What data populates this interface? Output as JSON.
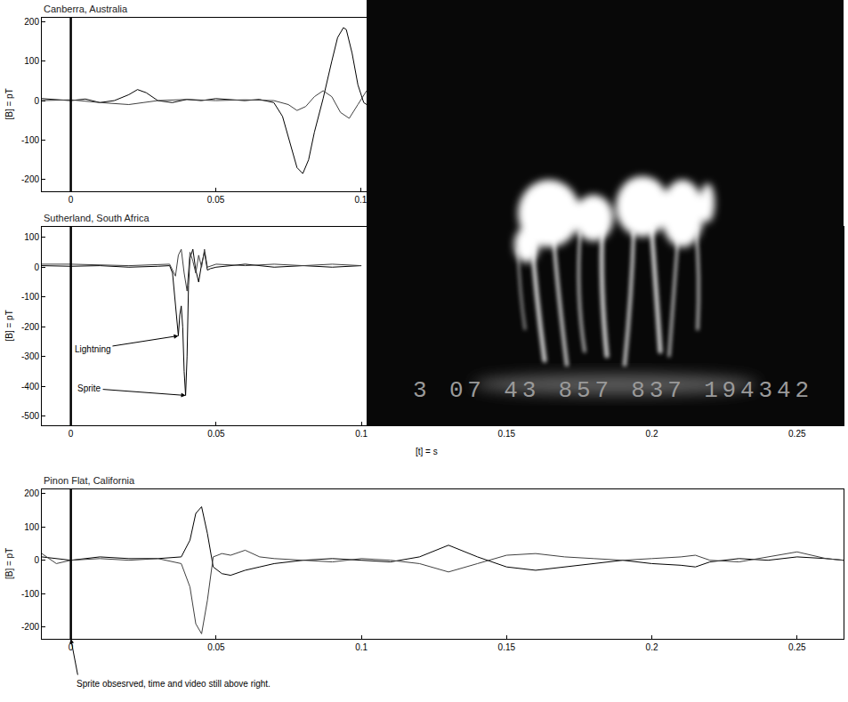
{
  "chart_data": [
    {
      "type": "line",
      "title": "Canberra, Australia",
      "ylabel": "[B] = pT",
      "xlim": [
        -0.01,
        0.102
      ],
      "ylim": [
        -230,
        210
      ],
      "xticks": [
        0,
        0.05,
        0.1
      ],
      "yticks": [
        -200,
        -100,
        0,
        100,
        200
      ],
      "vline": 0,
      "series": [
        {
          "color": "#000000",
          "x": [
            -0.01,
            -0.005,
            0,
            0.005,
            0.01,
            0.015,
            0.02,
            0.023,
            0.026,
            0.03,
            0.035,
            0.04,
            0.045,
            0.05,
            0.055,
            0.06,
            0.065,
            0.07,
            0.073,
            0.076,
            0.078,
            0.08,
            0.082,
            0.084,
            0.087,
            0.09,
            0.092,
            0.094,
            0.095,
            0.097,
            0.099,
            0.101,
            0.102
          ],
          "values": [
            5,
            3,
            0,
            4,
            -5,
            0,
            15,
            28,
            20,
            0,
            -5,
            3,
            0,
            5,
            2,
            0,
            3,
            -5,
            -40,
            -120,
            -170,
            -185,
            -150,
            -80,
            5,
            100,
            160,
            185,
            180,
            120,
            40,
            -5,
            -10
          ]
        },
        {
          "color": "#404040",
          "x": [
            -0.01,
            0,
            0.01,
            0.02,
            0.025,
            0.03,
            0.04,
            0.05,
            0.06,
            0.07,
            0.075,
            0.078,
            0.081,
            0.084,
            0.087,
            0.09,
            0.093,
            0.096,
            0.099,
            0.102
          ],
          "values": [
            0,
            2,
            -5,
            -10,
            -5,
            0,
            3,
            0,
            2,
            0,
            -10,
            -25,
            -15,
            10,
            25,
            10,
            -30,
            -45,
            -10,
            25
          ]
        }
      ]
    },
    {
      "type": "line",
      "title": "Sutherland, South Africa",
      "ylabel": "[B] = pT",
      "xlabel": "[t] = s",
      "xlim": [
        -0.01,
        0.266
      ],
      "ylim": [
        -530,
        135
      ],
      "xticks": [
        0,
        0.05,
        0.1,
        0.15,
        0.2,
        0.25
      ],
      "yticks": [
        -500,
        -400,
        -300,
        -200,
        -100,
        0,
        100
      ],
      "vline": 0,
      "annotations": [
        {
          "text": "Lightning",
          "x": 0.037,
          "y": -230
        },
        {
          "text": "Sprite",
          "x": 0.0395,
          "y": -430
        }
      ],
      "series": [
        {
          "color": "#000000",
          "x": [
            -0.01,
            0,
            0.01,
            0.02,
            0.03,
            0.034,
            0.035,
            0.036,
            0.037,
            0.0375,
            0.038,
            0.0385,
            0.039,
            0.0395,
            0.04,
            0.0405,
            0.041,
            0.042,
            0.043,
            0.044,
            0.045,
            0.046,
            0.047,
            0.048,
            0.05,
            0.06,
            0.07,
            0.08,
            0.09,
            0.1
          ],
          "values": [
            5,
            3,
            5,
            0,
            3,
            5,
            -20,
            -120,
            -230,
            -160,
            -130,
            -200,
            -350,
            -430,
            -300,
            -60,
            30,
            60,
            -10,
            -50,
            10,
            50,
            -10,
            -5,
            0,
            10,
            0,
            5,
            0,
            5
          ]
        },
        {
          "color": "#404040",
          "x": [
            -0.01,
            0,
            0.02,
            0.03,
            0.034,
            0.036,
            0.037,
            0.038,
            0.039,
            0.04,
            0.041,
            0.042,
            0.043,
            0.044,
            0.045,
            0.046,
            0.047,
            0.05,
            0.06,
            0.07,
            0.08,
            0.09,
            0.1
          ],
          "values": [
            10,
            10,
            5,
            10,
            10,
            -30,
            40,
            60,
            -20,
            -80,
            50,
            20,
            -20,
            40,
            0,
            60,
            0,
            10,
            5,
            10,
            5,
            10,
            5
          ]
        }
      ]
    },
    {
      "type": "line",
      "title": "Pinon Flat, California",
      "ylabel": "[B] = pT",
      "xlim": [
        -0.01,
        0.266
      ],
      "ylim": [
        -235,
        212
      ],
      "xticks": [
        0,
        0.05,
        0.1,
        0.15,
        0.2,
        0.25
      ],
      "yticks": [
        -200,
        -100,
        0,
        100,
        200
      ],
      "vline": 0,
      "annotations": [
        {
          "text": "Sprite obsesrved, time and video still above right.",
          "x": 0
        }
      ],
      "series": [
        {
          "color": "#000000",
          "x": [
            -0.01,
            -0.005,
            0,
            0.01,
            0.02,
            0.03,
            0.038,
            0.041,
            0.043,
            0.045,
            0.047,
            0.049,
            0.052,
            0.055,
            0.06,
            0.065,
            0.07,
            0.08,
            0.09,
            0.1,
            0.11,
            0.12,
            0.13,
            0.14,
            0.15,
            0.16,
            0.17,
            0.18,
            0.19,
            0.2,
            0.21,
            0.215,
            0.22,
            0.23,
            0.24,
            0.25,
            0.26,
            0.266
          ],
          "values": [
            10,
            5,
            0,
            10,
            5,
            5,
            10,
            60,
            140,
            160,
            80,
            -20,
            -40,
            -45,
            -30,
            -20,
            -10,
            0,
            5,
            0,
            -5,
            10,
            45,
            10,
            -20,
            -30,
            -20,
            -10,
            0,
            -10,
            -15,
            -20,
            -5,
            5,
            0,
            10,
            5,
            0
          ]
        },
        {
          "color": "#404040",
          "x": [
            -0.01,
            -0.005,
            0,
            0.01,
            0.02,
            0.03,
            0.038,
            0.041,
            0.043,
            0.045,
            0.047,
            0.049,
            0.052,
            0.055,
            0.06,
            0.065,
            0.07,
            0.08,
            0.09,
            0.1,
            0.11,
            0.12,
            0.13,
            0.14,
            0.15,
            0.16,
            0.17,
            0.18,
            0.19,
            0.2,
            0.21,
            0.215,
            0.22,
            0.23,
            0.24,
            0.25,
            0.26,
            0.266
          ],
          "values": [
            20,
            -10,
            0,
            5,
            0,
            5,
            -10,
            -80,
            -190,
            -220,
            -120,
            10,
            20,
            15,
            30,
            10,
            5,
            0,
            -5,
            5,
            0,
            -10,
            -35,
            -10,
            15,
            20,
            10,
            5,
            0,
            5,
            10,
            15,
            0,
            -5,
            10,
            25,
            5,
            0
          ]
        }
      ]
    }
  ],
  "photo": {
    "timestamp": "3 07 43 857 837 194342"
  }
}
